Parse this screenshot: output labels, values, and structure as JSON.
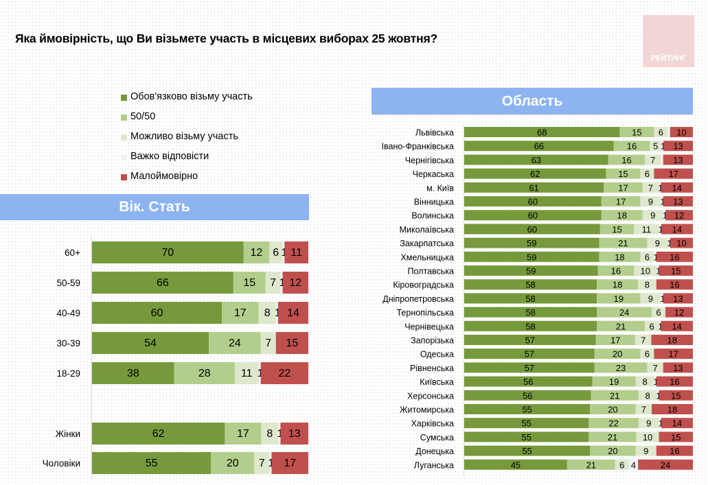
{
  "title": "Яка ймовірність, що Ви візьмете участь в місцевих виборах 25 жовтня?",
  "logo": "РЕЙТИНГ",
  "banners": {
    "age_gender": "Вік. Стать",
    "region": "Область"
  },
  "legend": [
    {
      "label": "Обов'язково візьму участь",
      "color": "#769a3b"
    },
    {
      "label": "50/50",
      "color": "#b3ce8c"
    },
    {
      "label": "Можливо візьму участь",
      "color": "#dde8cd"
    },
    {
      "label": "Важко відповісти",
      "color": "#f2f2f2"
    },
    {
      "label": "Малоймовірно",
      "color": "#c0504d"
    }
  ],
  "chart_data": [
    {
      "type": "bar",
      "orientation": "horizontal",
      "stacked": true,
      "title": "Вік. Стать",
      "series_names": [
        "Обов'язково візьму участь",
        "50/50",
        "Можливо візьму участь",
        "Важко відповісти",
        "Малоймовірно"
      ],
      "categories": [
        "60+",
        "50-59",
        "40-49",
        "30-39",
        "18-29",
        "Жінки",
        "Чоловіки"
      ],
      "values": [
        [
          70,
          12,
          6,
          1,
          11
        ],
        [
          66,
          15,
          7,
          1,
          12
        ],
        [
          60,
          17,
          8,
          1,
          14
        ],
        [
          54,
          24,
          7,
          0,
          15
        ],
        [
          38,
          28,
          11,
          1,
          22
        ],
        [
          62,
          17,
          8,
          1,
          13
        ],
        [
          55,
          20,
          7,
          1,
          17
        ]
      ],
      "labels": [
        [
          "70",
          "12",
          "6",
          "1",
          "11"
        ],
        [
          "66",
          "15",
          "7",
          "1",
          "12"
        ],
        [
          "60",
          "17",
          "8",
          "1",
          "14"
        ],
        [
          "54",
          "24",
          "7",
          "",
          "15"
        ],
        [
          "38",
          "28",
          "11",
          "1",
          "22"
        ],
        [
          "62",
          "17",
          "8",
          "1",
          "13"
        ],
        [
          "55",
          "20",
          "7",
          "1",
          "17"
        ]
      ]
    },
    {
      "type": "bar",
      "orientation": "horizontal",
      "stacked": true,
      "title": "Область",
      "series_names": [
        "Обов'язково візьму участь",
        "50/50",
        "Можливо візьму участь",
        "Важко відповісти",
        "Малоймовірно"
      ],
      "categories": [
        "Львівська",
        "Івано-Франківська",
        "Чернігівська",
        "Черкаська",
        "м. Київ",
        "Вінницька",
        "Волинська",
        "Миколаївська",
        "Закарпатська",
        "Хмельницька",
        "Полтавська",
        "Кіровоградська",
        "Дніпропетровська",
        "Тернопільська",
        "Чернівецька",
        "Запорізька",
        "Одеська",
        "Рівненська",
        "Київська",
        "Херсонська",
        "Житомирська",
        "Харківська",
        "Сумська",
        "Донецька",
        "Луганська"
      ],
      "values": [
        [
          68,
          15,
          6,
          1,
          10
        ],
        [
          66,
          16,
          5,
          1,
          13
        ],
        [
          63,
          16,
          7,
          1,
          13
        ],
        [
          62,
          15,
          6,
          0,
          17
        ],
        [
          61,
          17,
          7,
          1,
          14
        ],
        [
          60,
          17,
          9,
          1,
          13
        ],
        [
          60,
          18,
          9,
          1,
          12
        ],
        [
          60,
          15,
          11,
          1,
          14
        ],
        [
          59,
          21,
          9,
          1,
          10
        ],
        [
          59,
          18,
          6,
          1,
          16
        ],
        [
          59,
          16,
          10,
          1,
          15
        ],
        [
          58,
          18,
          8,
          0,
          16
        ],
        [
          58,
          19,
          9,
          1,
          13
        ],
        [
          58,
          24,
          6,
          0,
          12
        ],
        [
          58,
          21,
          6,
          1,
          14
        ],
        [
          57,
          17,
          7,
          0,
          18
        ],
        [
          57,
          20,
          6,
          0,
          17
        ],
        [
          57,
          23,
          7,
          0,
          13
        ],
        [
          56,
          19,
          8,
          1,
          16
        ],
        [
          56,
          21,
          8,
          1,
          15
        ],
        [
          55,
          20,
          7,
          0,
          18
        ],
        [
          55,
          22,
          9,
          1,
          14
        ],
        [
          55,
          21,
          10,
          0,
          15
        ],
        [
          55,
          20,
          9,
          0,
          16
        ],
        [
          45,
          21,
          6,
          4,
          24
        ]
      ],
      "labels": [
        [
          "68",
          "15",
          "6",
          "",
          "10"
        ],
        [
          "66",
          "16",
          "5",
          "1",
          "13"
        ],
        [
          "63",
          "16",
          "7",
          "",
          "13"
        ],
        [
          "62",
          "15",
          "6",
          "",
          "17"
        ],
        [
          "61",
          "17",
          "7",
          "1",
          "14"
        ],
        [
          "60",
          "17",
          "9",
          "1",
          "13"
        ],
        [
          "60",
          "18",
          "9",
          "1",
          "12"
        ],
        [
          "60",
          "15",
          "11",
          "1",
          "14"
        ],
        [
          "59",
          "21",
          "9",
          "1",
          "10"
        ],
        [
          "59",
          "18",
          "6",
          "1",
          "16"
        ],
        [
          "59",
          "16",
          "10",
          "1",
          "15"
        ],
        [
          "58",
          "18",
          "8",
          "",
          "16"
        ],
        [
          "58",
          "19",
          "9",
          "1",
          "13"
        ],
        [
          "58",
          "24",
          "6",
          "",
          "12"
        ],
        [
          "58",
          "21",
          "6",
          "1",
          "14"
        ],
        [
          "57",
          "17",
          "7",
          "",
          "18"
        ],
        [
          "57",
          "20",
          "6",
          "",
          "17"
        ],
        [
          "57",
          "23",
          "7",
          "",
          "13"
        ],
        [
          "56",
          "19",
          "8",
          "1",
          "16"
        ],
        [
          "56",
          "21",
          "8",
          "1",
          "15"
        ],
        [
          "55",
          "20",
          "7",
          "",
          "18"
        ],
        [
          "55",
          "22",
          "9",
          "1",
          "14"
        ],
        [
          "55",
          "21",
          "10",
          "",
          "15"
        ],
        [
          "55",
          "20",
          "9",
          "",
          "16"
        ],
        [
          "45",
          "21",
          "6",
          "4",
          "24"
        ]
      ]
    }
  ]
}
